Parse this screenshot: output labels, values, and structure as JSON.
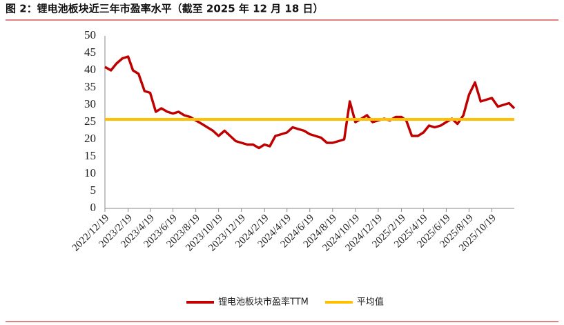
{
  "chart_data": {
    "type": "line",
    "title": "图 2：锂电池板块近三年市盈率水平（截至 2025 年 12 月 18 日）",
    "x": [
      "2022/12/19",
      "2023/1/4",
      "2023/1/19",
      "2023/2/4",
      "2023/2/19",
      "2023/3/4",
      "2023/3/19",
      "2023/4/4",
      "2023/4/19",
      "2023/5/4",
      "2023/5/19",
      "2023/6/4",
      "2023/6/19",
      "2023/7/4",
      "2023/7/19",
      "2023/8/4",
      "2023/8/19",
      "2023/9/4",
      "2023/9/19",
      "2023/10/4",
      "2023/10/19",
      "2023/11/4",
      "2023/11/19",
      "2023/12/4",
      "2023/12/19",
      "2024/1/4",
      "2024/1/19",
      "2024/2/4",
      "2024/2/19",
      "2024/3/4",
      "2024/3/19",
      "2024/4/4",
      "2024/4/19",
      "2024/5/4",
      "2024/5/19",
      "2024/6/4",
      "2024/6/19",
      "2024/7/4",
      "2024/7/19",
      "2024/8/4",
      "2024/8/19",
      "2024/9/4",
      "2024/9/19",
      "2024/10/4",
      "2024/10/19",
      "2024/11/4",
      "2024/11/19",
      "2024/12/4",
      "2024/12/19",
      "2025/1/4",
      "2025/1/19",
      "2025/2/4",
      "2025/2/19",
      "2025/3/4",
      "2025/3/19",
      "2025/4/4",
      "2025/4/19",
      "2025/5/4",
      "2025/5/19",
      "2025/6/4",
      "2025/6/19",
      "2025/7/4",
      "2025/7/19",
      "2025/8/4",
      "2025/8/19",
      "2025/9/4",
      "2025/9/19",
      "2025/10/4",
      "2025/10/19",
      "2025/11/4",
      "2025/11/19",
      "2025/12/4",
      "2025/12/18"
    ],
    "series": [
      {
        "name": "锂电池板块市盈率TTM",
        "color": "#c00000",
        "values": [
          41,
          40,
          42,
          43.5,
          44,
          40,
          39,
          34,
          33.5,
          28,
          29,
          28,
          27.5,
          28,
          27,
          26.5,
          25.5,
          24.5,
          23.5,
          22.5,
          21,
          22.5,
          21,
          19.5,
          19,
          18.5,
          18.5,
          17.5,
          18.5,
          18,
          21,
          21.5,
          22,
          23.5,
          23,
          22.5,
          21.5,
          21,
          20.5,
          19,
          19,
          19.5,
          20,
          31,
          25,
          26,
          27,
          25,
          25.5,
          26,
          25.5,
          26.5,
          26.5,
          25.5,
          21,
          21,
          22,
          24,
          23.5,
          24,
          25,
          26,
          24.5,
          27,
          33,
          36.5,
          31,
          31.5,
          32,
          29.5,
          30,
          30.5,
          29
        ]
      },
      {
        "name": "平均值",
        "color": "#ffc000",
        "value": 25.8
      }
    ],
    "ylim": [
      0,
      50
    ],
    "yticks": [
      0,
      5,
      10,
      15,
      20,
      25,
      30,
      35,
      40,
      45,
      50
    ],
    "xticks": [
      "2022/12/19",
      "2023/2/19",
      "2023/4/19",
      "2023/6/19",
      "2023/8/19",
      "2023/10/19",
      "2023/12/19",
      "2024/2/19",
      "2024/4/19",
      "2024/6/19",
      "2024/8/19",
      "2024/10/19",
      "2024/12/19",
      "2025/2/19",
      "2025/4/19",
      "2025/6/19",
      "2025/8/19",
      "2025/10/19"
    ]
  }
}
